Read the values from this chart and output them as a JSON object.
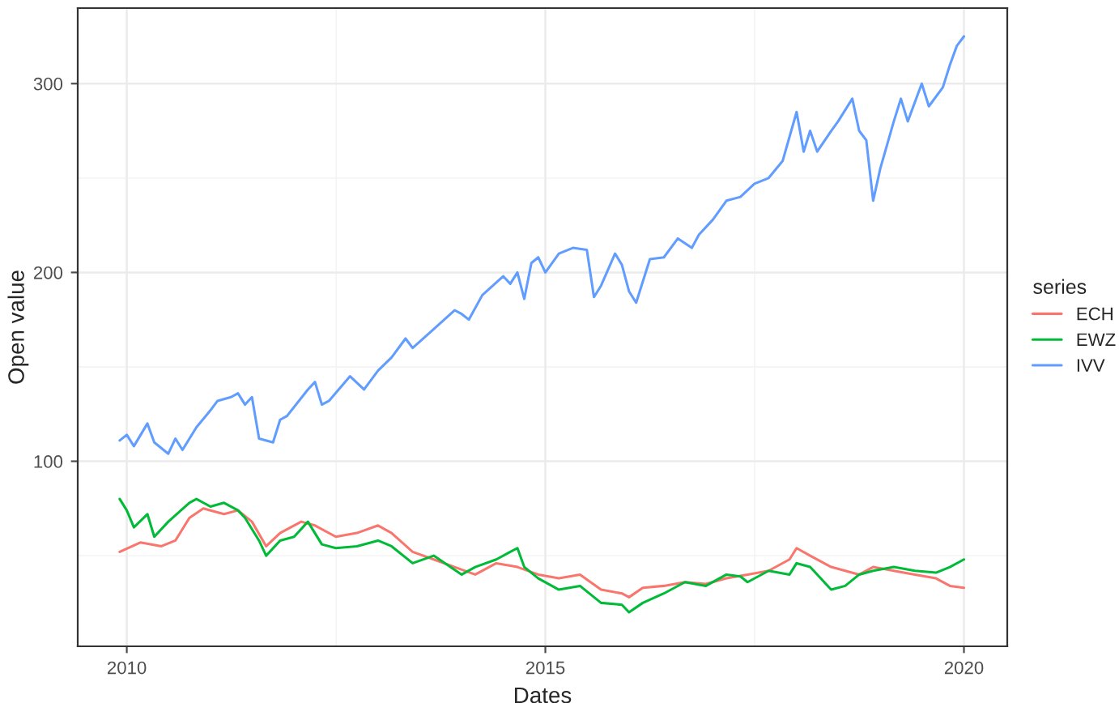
{
  "chart_data": {
    "type": "line",
    "xlabel": "Dates",
    "ylabel": "Open value",
    "legend_title": "series",
    "legend": "right",
    "grid": true,
    "xlim": [
      "2009-06-01",
      "2020-07-08"
    ],
    "xticks": [
      {
        "value": "2010-01-01",
        "label": "2010"
      },
      {
        "value": "2015-01-01",
        "label": "2015"
      },
      {
        "value": "2020-01-01",
        "label": "2020"
      }
    ],
    "ylim": [
      2,
      340
    ],
    "yticks": [
      100,
      200,
      300
    ],
    "series": [
      {
        "name": "ECH",
        "color": "#f8766d",
        "x": [
          "2009-12",
          "2010-03",
          "2010-06",
          "2010-08",
          "2010-10",
          "2010-12",
          "2011-03",
          "2011-05",
          "2011-07",
          "2011-09",
          "2011-11",
          "2012-02",
          "2012-04",
          "2012-07",
          "2012-10",
          "2013-01",
          "2013-03",
          "2013-06",
          "2013-09",
          "2013-12",
          "2014-03",
          "2014-06",
          "2014-09",
          "2014-12",
          "2015-03",
          "2015-06",
          "2015-09",
          "2015-12",
          "2016-01",
          "2016-03",
          "2016-06",
          "2016-09",
          "2016-12",
          "2017-03",
          "2017-06",
          "2017-09",
          "2017-12",
          "2018-01",
          "2018-03",
          "2018-06",
          "2018-08",
          "2018-10",
          "2018-12",
          "2019-03",
          "2019-06",
          "2019-09",
          "2019-11",
          "2020-01"
        ],
        "values": [
          52,
          57,
          55,
          58,
          70,
          75,
          72,
          74,
          68,
          55,
          62,
          68,
          66,
          60,
          62,
          66,
          62,
          52,
          48,
          44,
          40,
          46,
          44,
          40,
          38,
          40,
          32,
          30,
          28,
          33,
          34,
          36,
          35,
          38,
          40,
          42,
          48,
          54,
          50,
          44,
          42,
          40,
          44,
          42,
          40,
          38,
          34,
          33
        ]
      },
      {
        "name": "EWZ",
        "color": "#00ba38",
        "x": [
          "2009-12",
          "2010-01",
          "2010-02",
          "2010-04",
          "2010-05",
          "2010-07",
          "2010-10",
          "2010-11",
          "2011-01",
          "2011-03",
          "2011-05",
          "2011-06",
          "2011-08",
          "2011-09",
          "2011-11",
          "2012-01",
          "2012-03",
          "2012-05",
          "2012-07",
          "2012-10",
          "2013-01",
          "2013-03",
          "2013-06",
          "2013-09",
          "2013-11",
          "2014-01",
          "2014-03",
          "2014-06",
          "2014-08",
          "2014-09",
          "2014-10",
          "2014-12",
          "2015-03",
          "2015-06",
          "2015-09",
          "2015-12",
          "2016-01",
          "2016-03",
          "2016-06",
          "2016-09",
          "2016-12",
          "2017-03",
          "2017-05",
          "2017-06",
          "2017-09",
          "2017-12",
          "2018-01",
          "2018-03",
          "2018-06",
          "2018-08",
          "2018-10",
          "2018-12",
          "2019-03",
          "2019-06",
          "2019-09",
          "2019-11",
          "2020-01"
        ],
        "values": [
          80,
          74,
          65,
          72,
          60,
          68,
          78,
          80,
          76,
          78,
          74,
          70,
          58,
          50,
          58,
          60,
          68,
          56,
          54,
          55,
          58,
          55,
          46,
          50,
          45,
          40,
          44,
          48,
          52,
          54,
          44,
          38,
          32,
          34,
          25,
          24,
          20,
          25,
          30,
          36,
          34,
          40,
          39,
          36,
          42,
          40,
          46,
          44,
          32,
          34,
          40,
          42,
          44,
          42,
          41,
          44,
          48
        ]
      },
      {
        "name": "IVV",
        "color": "#619cff",
        "x": [
          "2009-12",
          "2010-01",
          "2010-02",
          "2010-04",
          "2010-05",
          "2010-07",
          "2010-08",
          "2010-09",
          "2010-11",
          "2011-01",
          "2011-02",
          "2011-04",
          "2011-05",
          "2011-06",
          "2011-07",
          "2011-08",
          "2011-10",
          "2011-11",
          "2011-12",
          "2012-03",
          "2012-04",
          "2012-05",
          "2012-06",
          "2012-09",
          "2012-11",
          "2013-01",
          "2013-03",
          "2013-05",
          "2013-06",
          "2013-09",
          "2013-12",
          "2014-01",
          "2014-02",
          "2014-04",
          "2014-07",
          "2014-08",
          "2014-09",
          "2014-10",
          "2014-11",
          "2014-12",
          "2015-01",
          "2015-03",
          "2015-05",
          "2015-07",
          "2015-08",
          "2015-09",
          "2015-11",
          "2015-12",
          "2016-01",
          "2016-02",
          "2016-04",
          "2016-06",
          "2016-08",
          "2016-10",
          "2016-11",
          "2017-01",
          "2017-03",
          "2017-05",
          "2017-07",
          "2017-09",
          "2017-11",
          "2018-01",
          "2018-02",
          "2018-03",
          "2018-04",
          "2018-06",
          "2018-07",
          "2018-09",
          "2018-10",
          "2018-11",
          "2018-12",
          "2019-01",
          "2019-03",
          "2019-04",
          "2019-05",
          "2019-07",
          "2019-08",
          "2019-10",
          "2019-11",
          "2019-12",
          "2020-01"
        ],
        "values": [
          111,
          114,
          108,
          120,
          110,
          104,
          112,
          106,
          118,
          127,
          132,
          134,
          136,
          130,
          134,
          112,
          110,
          122,
          124,
          138,
          142,
          130,
          132,
          145,
          138,
          148,
          155,
          165,
          160,
          170,
          180,
          178,
          175,
          188,
          198,
          194,
          200,
          186,
          205,
          208,
          200,
          210,
          213,
          212,
          187,
          193,
          210,
          204,
          190,
          184,
          207,
          208,
          218,
          213,
          220,
          228,
          238,
          240,
          247,
          250,
          259,
          285,
          264,
          275,
          264,
          275,
          280,
          292,
          275,
          270,
          238,
          255,
          280,
          292,
          280,
          300,
          288,
          298,
          310,
          320,
          325
        ]
      }
    ]
  }
}
